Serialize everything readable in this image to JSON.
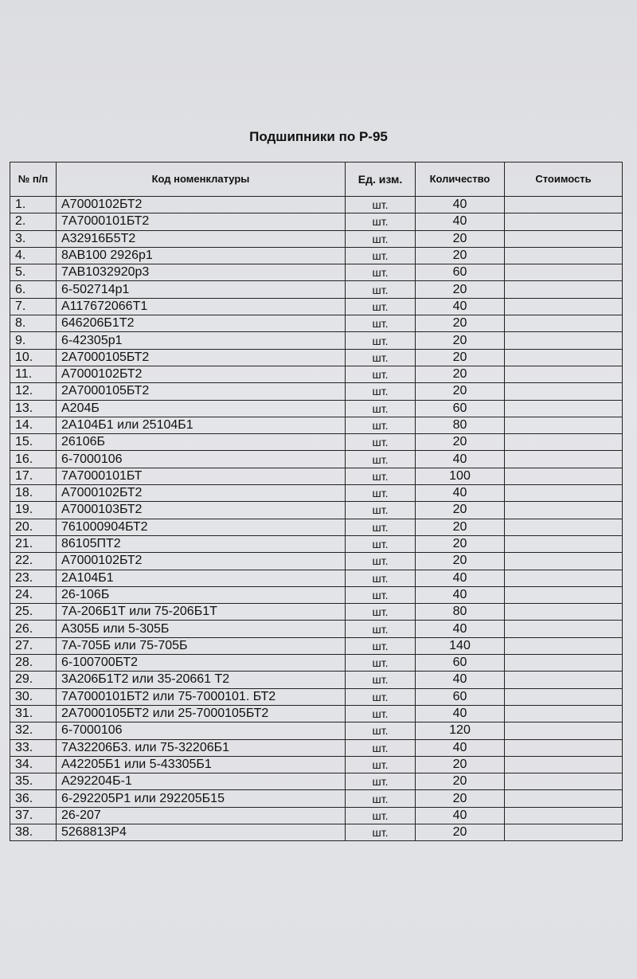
{
  "title": "Подшипники по Р-95",
  "headers": {
    "no": "№ п/п",
    "code": "Код номенклатуры",
    "unit": "Ед. изм.",
    "qty": "Количество",
    "cost": "Стоимость"
  },
  "rows": [
    {
      "no": "1.",
      "code": "А7000102БТ2",
      "unit": "шт.",
      "qty": "40",
      "cost": ""
    },
    {
      "no": "2.",
      "code": "7А7000101БТ2",
      "unit": "шт.",
      "qty": "40",
      "cost": ""
    },
    {
      "no": "3.",
      "code": "А32916Б5Т2",
      "unit": "шт.",
      "qty": "20",
      "cost": ""
    },
    {
      "no": "4.",
      "code": "8АВ100 2926р1",
      "unit": "шт.",
      "qty": "20",
      "cost": ""
    },
    {
      "no": "5.",
      "code": "7АВ1032920р3",
      "unit": "шт.",
      "qty": "60",
      "cost": ""
    },
    {
      "no": "6.",
      "code": "6-502714р1",
      "unit": "шт.",
      "qty": "20",
      "cost": ""
    },
    {
      "no": "7.",
      "code": "А117672066Т1",
      "unit": "шт.",
      "qty": "40",
      "cost": ""
    },
    {
      "no": "8.",
      "code": "646206Б1Т2",
      "unit": "шт.",
      "qty": "20",
      "cost": ""
    },
    {
      "no": "9.",
      "code": "6-42305р1",
      "unit": "шт.",
      "qty": "20",
      "cost": ""
    },
    {
      "no": "10.",
      "code": "2А7000105БТ2",
      "unit": "шт.",
      "qty": "20",
      "cost": ""
    },
    {
      "no": "11.",
      "code": "А7000102БТ2",
      "unit": "шт.",
      "qty": "20",
      "cost": ""
    },
    {
      "no": "12.",
      "code": "2А7000105БТ2",
      "unit": "шт.",
      "qty": "20",
      "cost": ""
    },
    {
      "no": "13.",
      "code": "А204Б",
      "unit": "шт.",
      "qty": "60",
      "cost": ""
    },
    {
      "no": "14.",
      "code": "2А104Б1 или 25104Б1",
      "unit": "шт.",
      "qty": "80",
      "cost": ""
    },
    {
      "no": "15.",
      "code": "26106Б",
      "unit": "шт.",
      "qty": "20",
      "cost": ""
    },
    {
      "no": "16.",
      "code": "6-7000106",
      "unit": "шт.",
      "qty": "40",
      "cost": ""
    },
    {
      "no": "17.",
      "code": "7А7000101БТ",
      "unit": "шт.",
      "qty": "100",
      "cost": ""
    },
    {
      "no": "18.",
      "code": "А7000102БТ2",
      "unit": "шт.",
      "qty": "40",
      "cost": ""
    },
    {
      "no": "19.",
      "code": "А7000103БТ2",
      "unit": "шт.",
      "qty": "20",
      "cost": ""
    },
    {
      "no": "20.",
      "code": "761000904БТ2",
      "unit": "шт.",
      "qty": "20",
      "cost": ""
    },
    {
      "no": "21.",
      "code": "86105ПТ2",
      "unit": "шт.",
      "qty": "20",
      "cost": ""
    },
    {
      "no": "22.",
      "code": "А7000102БТ2",
      "unit": "шт.",
      "qty": "20",
      "cost": ""
    },
    {
      "no": "23.",
      "code": "2А104Б1",
      "unit": "шт.",
      "qty": "40",
      "cost": ""
    },
    {
      "no": "24.",
      "code": "26-106Б",
      "unit": "шт.",
      "qty": "40",
      "cost": ""
    },
    {
      "no": "25.",
      "code": "7А-206Б1Т или 75-206Б1Т",
      "unit": "шт.",
      "qty": "80",
      "cost": ""
    },
    {
      "no": "26.",
      "code": "А305Б или 5-305Б",
      "unit": "шт.",
      "qty": "40",
      "cost": ""
    },
    {
      "no": "27.",
      "code": "7А-705Б или 75-705Б",
      "unit": "шт.",
      "qty": "140",
      "cost": ""
    },
    {
      "no": "28.",
      "code": "6-100700БТ2",
      "unit": "шт.",
      "qty": "60",
      "cost": ""
    },
    {
      "no": "29.",
      "code": "3А206Б1Т2 или 35-20661 Т2",
      "unit": "шт.",
      "qty": "40",
      "cost": ""
    },
    {
      "no": "30.",
      "code": "7А7000101БТ2  или 75-7000101.  БТ2",
      "unit": "шт.",
      "qty": "60",
      "cost": ""
    },
    {
      "no": "31.",
      "code": "2А7000105БТ2 или 25-7000105БТ2",
      "unit": "шт.",
      "qty": "40",
      "cost": ""
    },
    {
      "no": "32.",
      "code": "6-7000106",
      "unit": "шт.",
      "qty": "120",
      "cost": ""
    },
    {
      "no": "33.",
      "code": "7А32206Б3. или 75-32206Б1",
      "unit": "шт.",
      "qty": "40",
      "cost": ""
    },
    {
      "no": "34.",
      "code": "А42205Б1 или 5-43305Б1",
      "unit": "шт.",
      "qty": "20",
      "cost": ""
    },
    {
      "no": "35.",
      "code": "А292204Б-1",
      "unit": "шт.",
      "qty": "20",
      "cost": ""
    },
    {
      "no": "36.",
      "code": "6-292205Р1 или 292205Б15",
      "unit": "шт.",
      "qty": "20",
      "cost": ""
    },
    {
      "no": "37.",
      "code": "26-207",
      "unit": "шт.",
      "qty": "40",
      "cost": ""
    },
    {
      "no": "38.",
      "code": "5268813Р4",
      "unit": "шт.",
      "qty": "20",
      "cost": ""
    }
  ]
}
